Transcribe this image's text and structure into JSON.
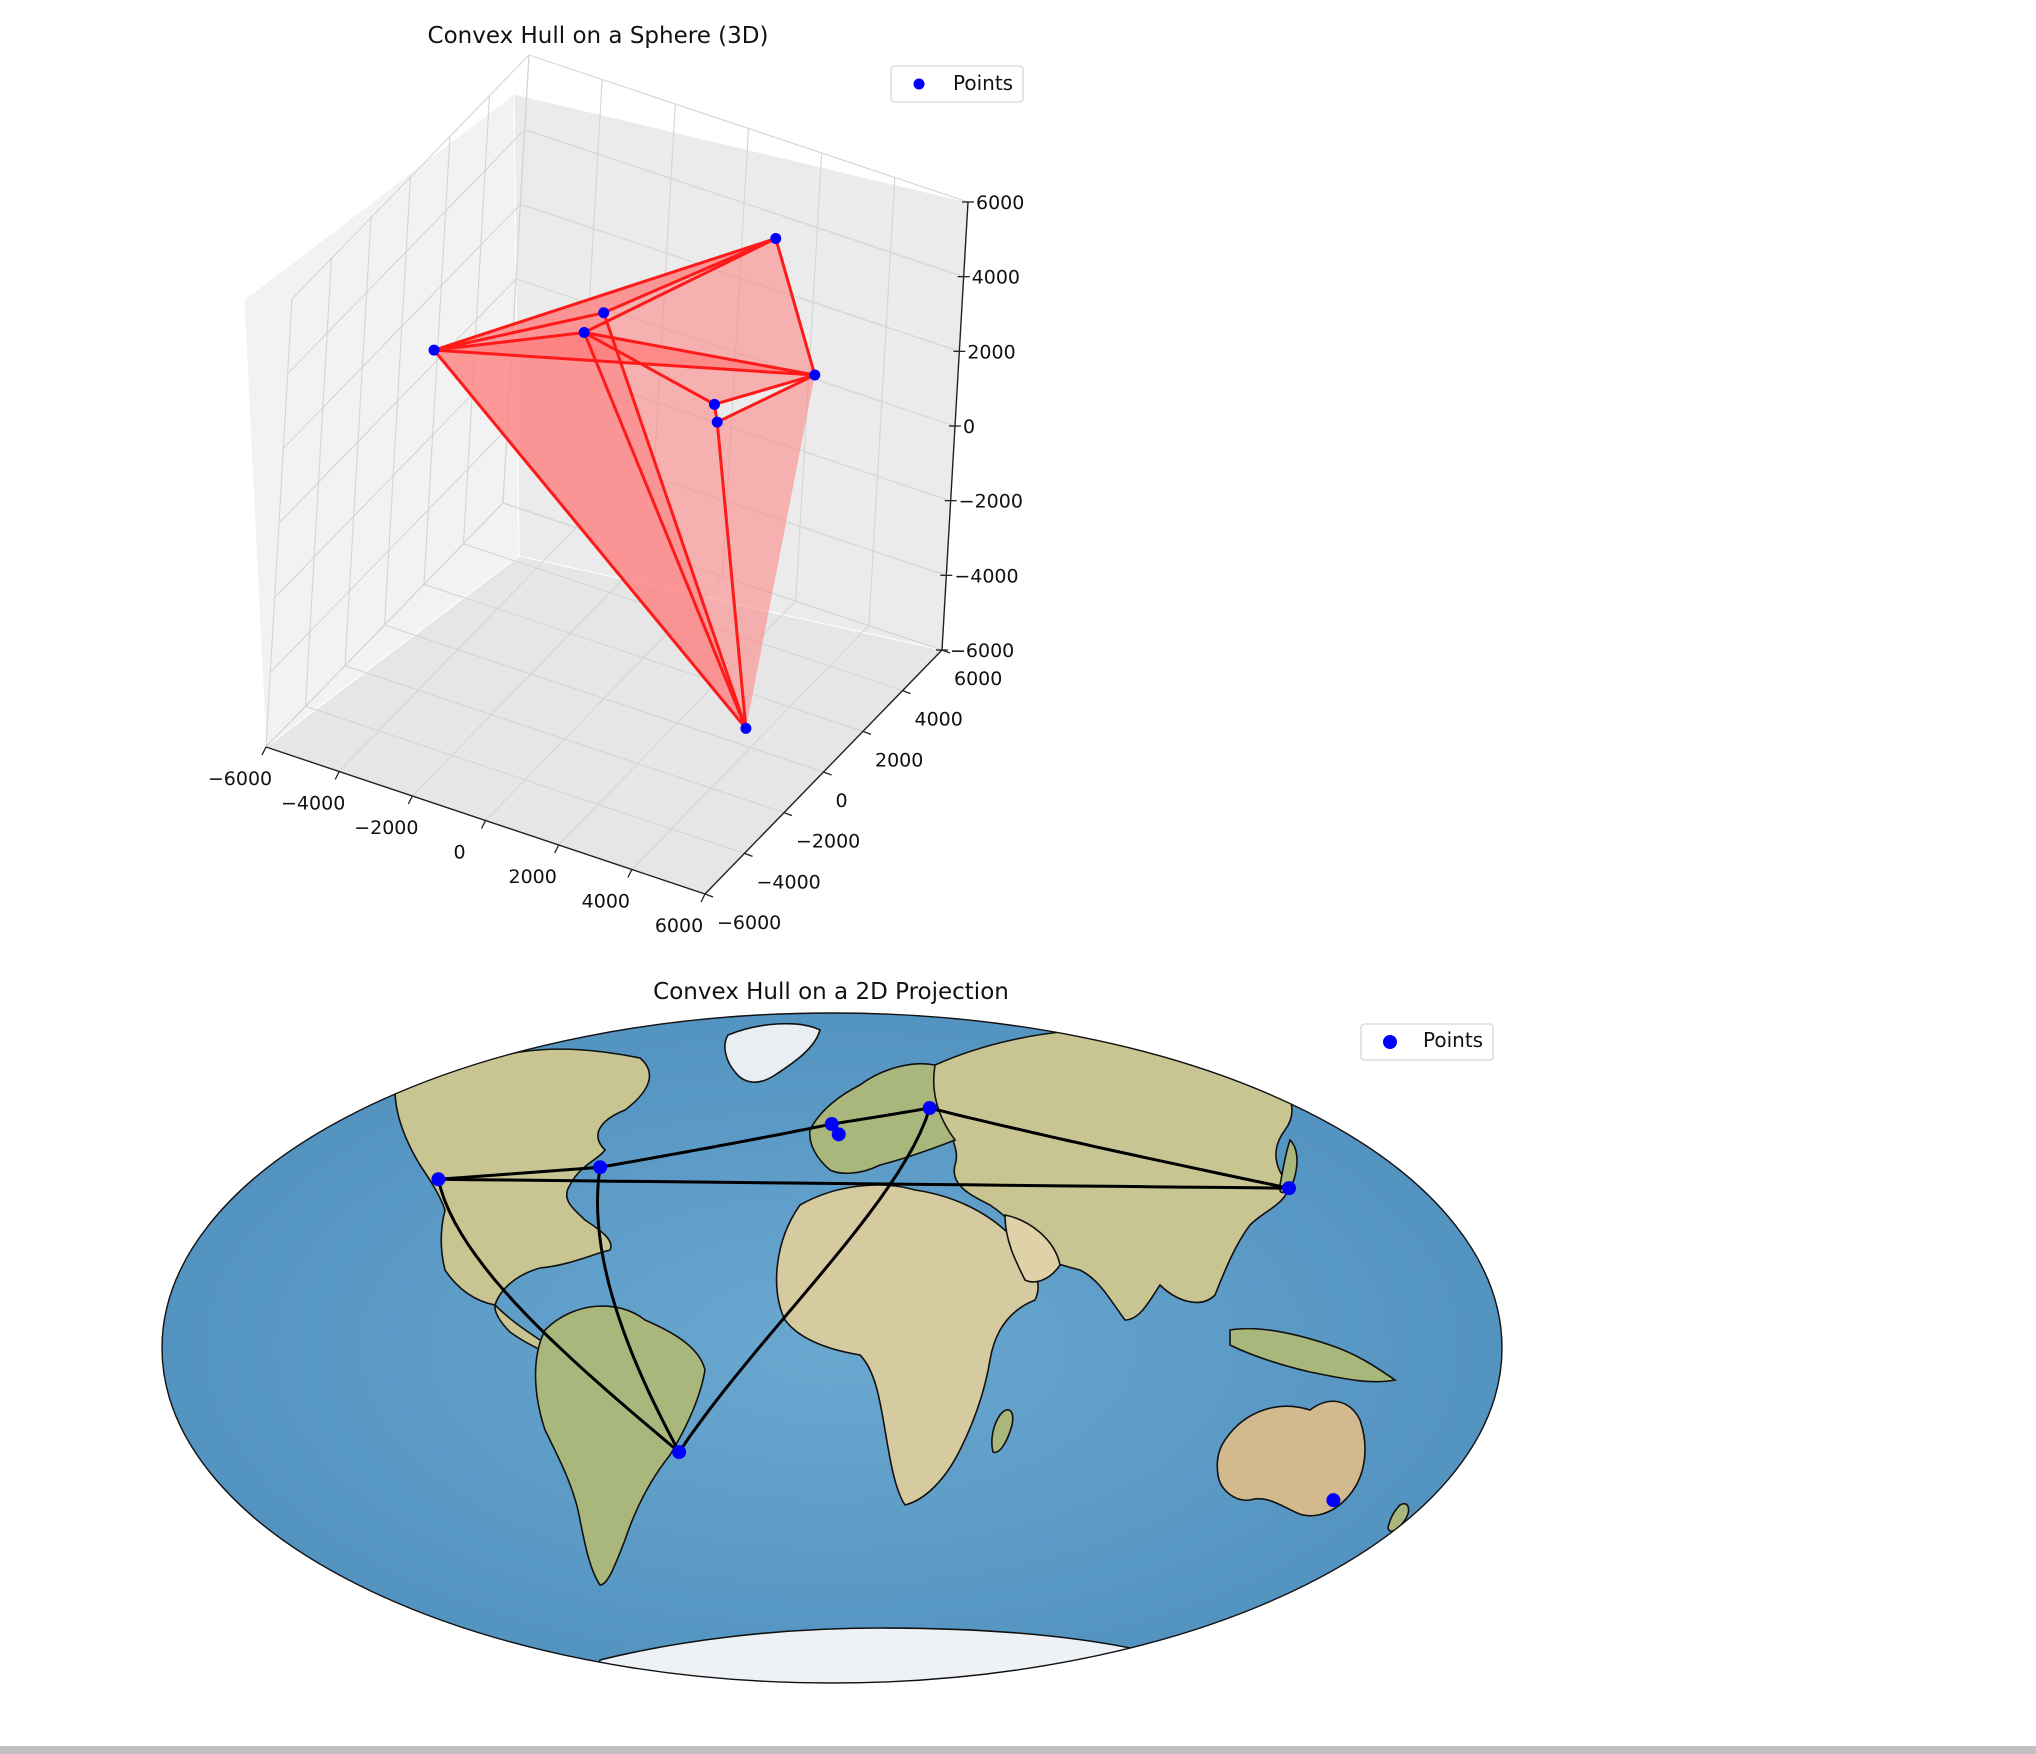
{
  "colors": {
    "points": "#0000ff",
    "hull_3d": "#ff1a1a",
    "hull_fill_3d": "#ff8080",
    "hull_2d": "#000000",
    "ocean": "#5f9fc9",
    "land": "#c9c69a",
    "pane": "#efefef",
    "grid": "#d0d0d0"
  },
  "chart_data": [
    {
      "type": "scatter",
      "projection": "3d",
      "title": "Convex Hull on a Sphere (3D)",
      "legend": {
        "label": "Points",
        "placement": "top-right"
      },
      "axes": {
        "x": {
          "ticks": [
            -6000,
            -4000,
            -2000,
            0,
            2000,
            4000,
            6000
          ],
          "lim": [
            -6000,
            6000
          ]
        },
        "y": {
          "ticks": [
            -6000,
            -4000,
            -2000,
            0,
            2000,
            4000,
            6000
          ],
          "lim": [
            -6000,
            6000
          ]
        },
        "z": {
          "ticks": [
            -6000,
            -4000,
            -2000,
            0,
            2000,
            4000,
            6000
          ],
          "lim": [
            -6000,
            6000
          ]
        }
      },
      "grid": true,
      "points": [
        {
          "x": 1500,
          "y": 4800,
          "z": 4200
        },
        {
          "x": 4900,
          "y": 500,
          "z": 4000
        },
        {
          "x": 3700,
          "y": -2400,
          "z": 4400
        },
        {
          "x": 3900,
          "y": -2600,
          "z": 4100
        },
        {
          "x": -2600,
          "y": 4000,
          "z": 1300
        },
        {
          "x": -1200,
          "y": 200,
          "z": 3300
        },
        {
          "x": -5000,
          "y": -200,
          "z": 1800
        },
        {
          "x": 4300,
          "y": -900,
          "z": -4900
        }
      ],
      "hull_edges": [
        [
          0,
          1
        ],
        [
          0,
          4
        ],
        [
          0,
          6
        ],
        [
          1,
          2
        ],
        [
          1,
          3
        ],
        [
          1,
          5
        ],
        [
          1,
          6
        ],
        [
          2,
          3
        ],
        [
          2,
          5
        ],
        [
          3,
          7
        ],
        [
          5,
          6
        ],
        [
          5,
          7
        ],
        [
          4,
          6
        ],
        [
          4,
          7
        ],
        [
          6,
          7
        ],
        [
          0,
          5
        ]
      ],
      "hull_faces": [
        [
          0,
          1,
          6
        ],
        [
          1,
          5,
          6
        ],
        [
          1,
          2,
          5
        ],
        [
          2,
          3,
          5
        ],
        [
          3,
          5,
          7
        ],
        [
          5,
          6,
          7
        ],
        [
          4,
          6,
          7
        ],
        [
          0,
          4,
          6
        ],
        [
          1,
          3,
          7
        ]
      ]
    },
    {
      "type": "scatter",
      "projection": "mollweide-map",
      "title": "Convex Hull on a 2D Projection",
      "legend": {
        "label": "Points",
        "placement": "top-right"
      },
      "points": [
        {
          "lon": -122.4,
          "lat": 37.8
        },
        {
          "lon": -74.0,
          "lat": 40.7
        },
        {
          "lon": -0.1,
          "lat": 51.5
        },
        {
          "lon": 2.35,
          "lat": 48.85
        },
        {
          "lon": 37.6,
          "lat": 55.75
        },
        {
          "lon": 139.7,
          "lat": 35.7
        },
        {
          "lon": -43.2,
          "lat": -22.9
        },
        {
          "lon": 151.2,
          "lat": -33.9
        }
      ],
      "hull_edges": [
        [
          0,
          1
        ],
        [
          1,
          2
        ],
        [
          2,
          4
        ],
        [
          4,
          5
        ],
        [
          5,
          0
        ],
        [
          0,
          6
        ],
        [
          1,
          6
        ],
        [
          6,
          4
        ]
      ]
    }
  ]
}
